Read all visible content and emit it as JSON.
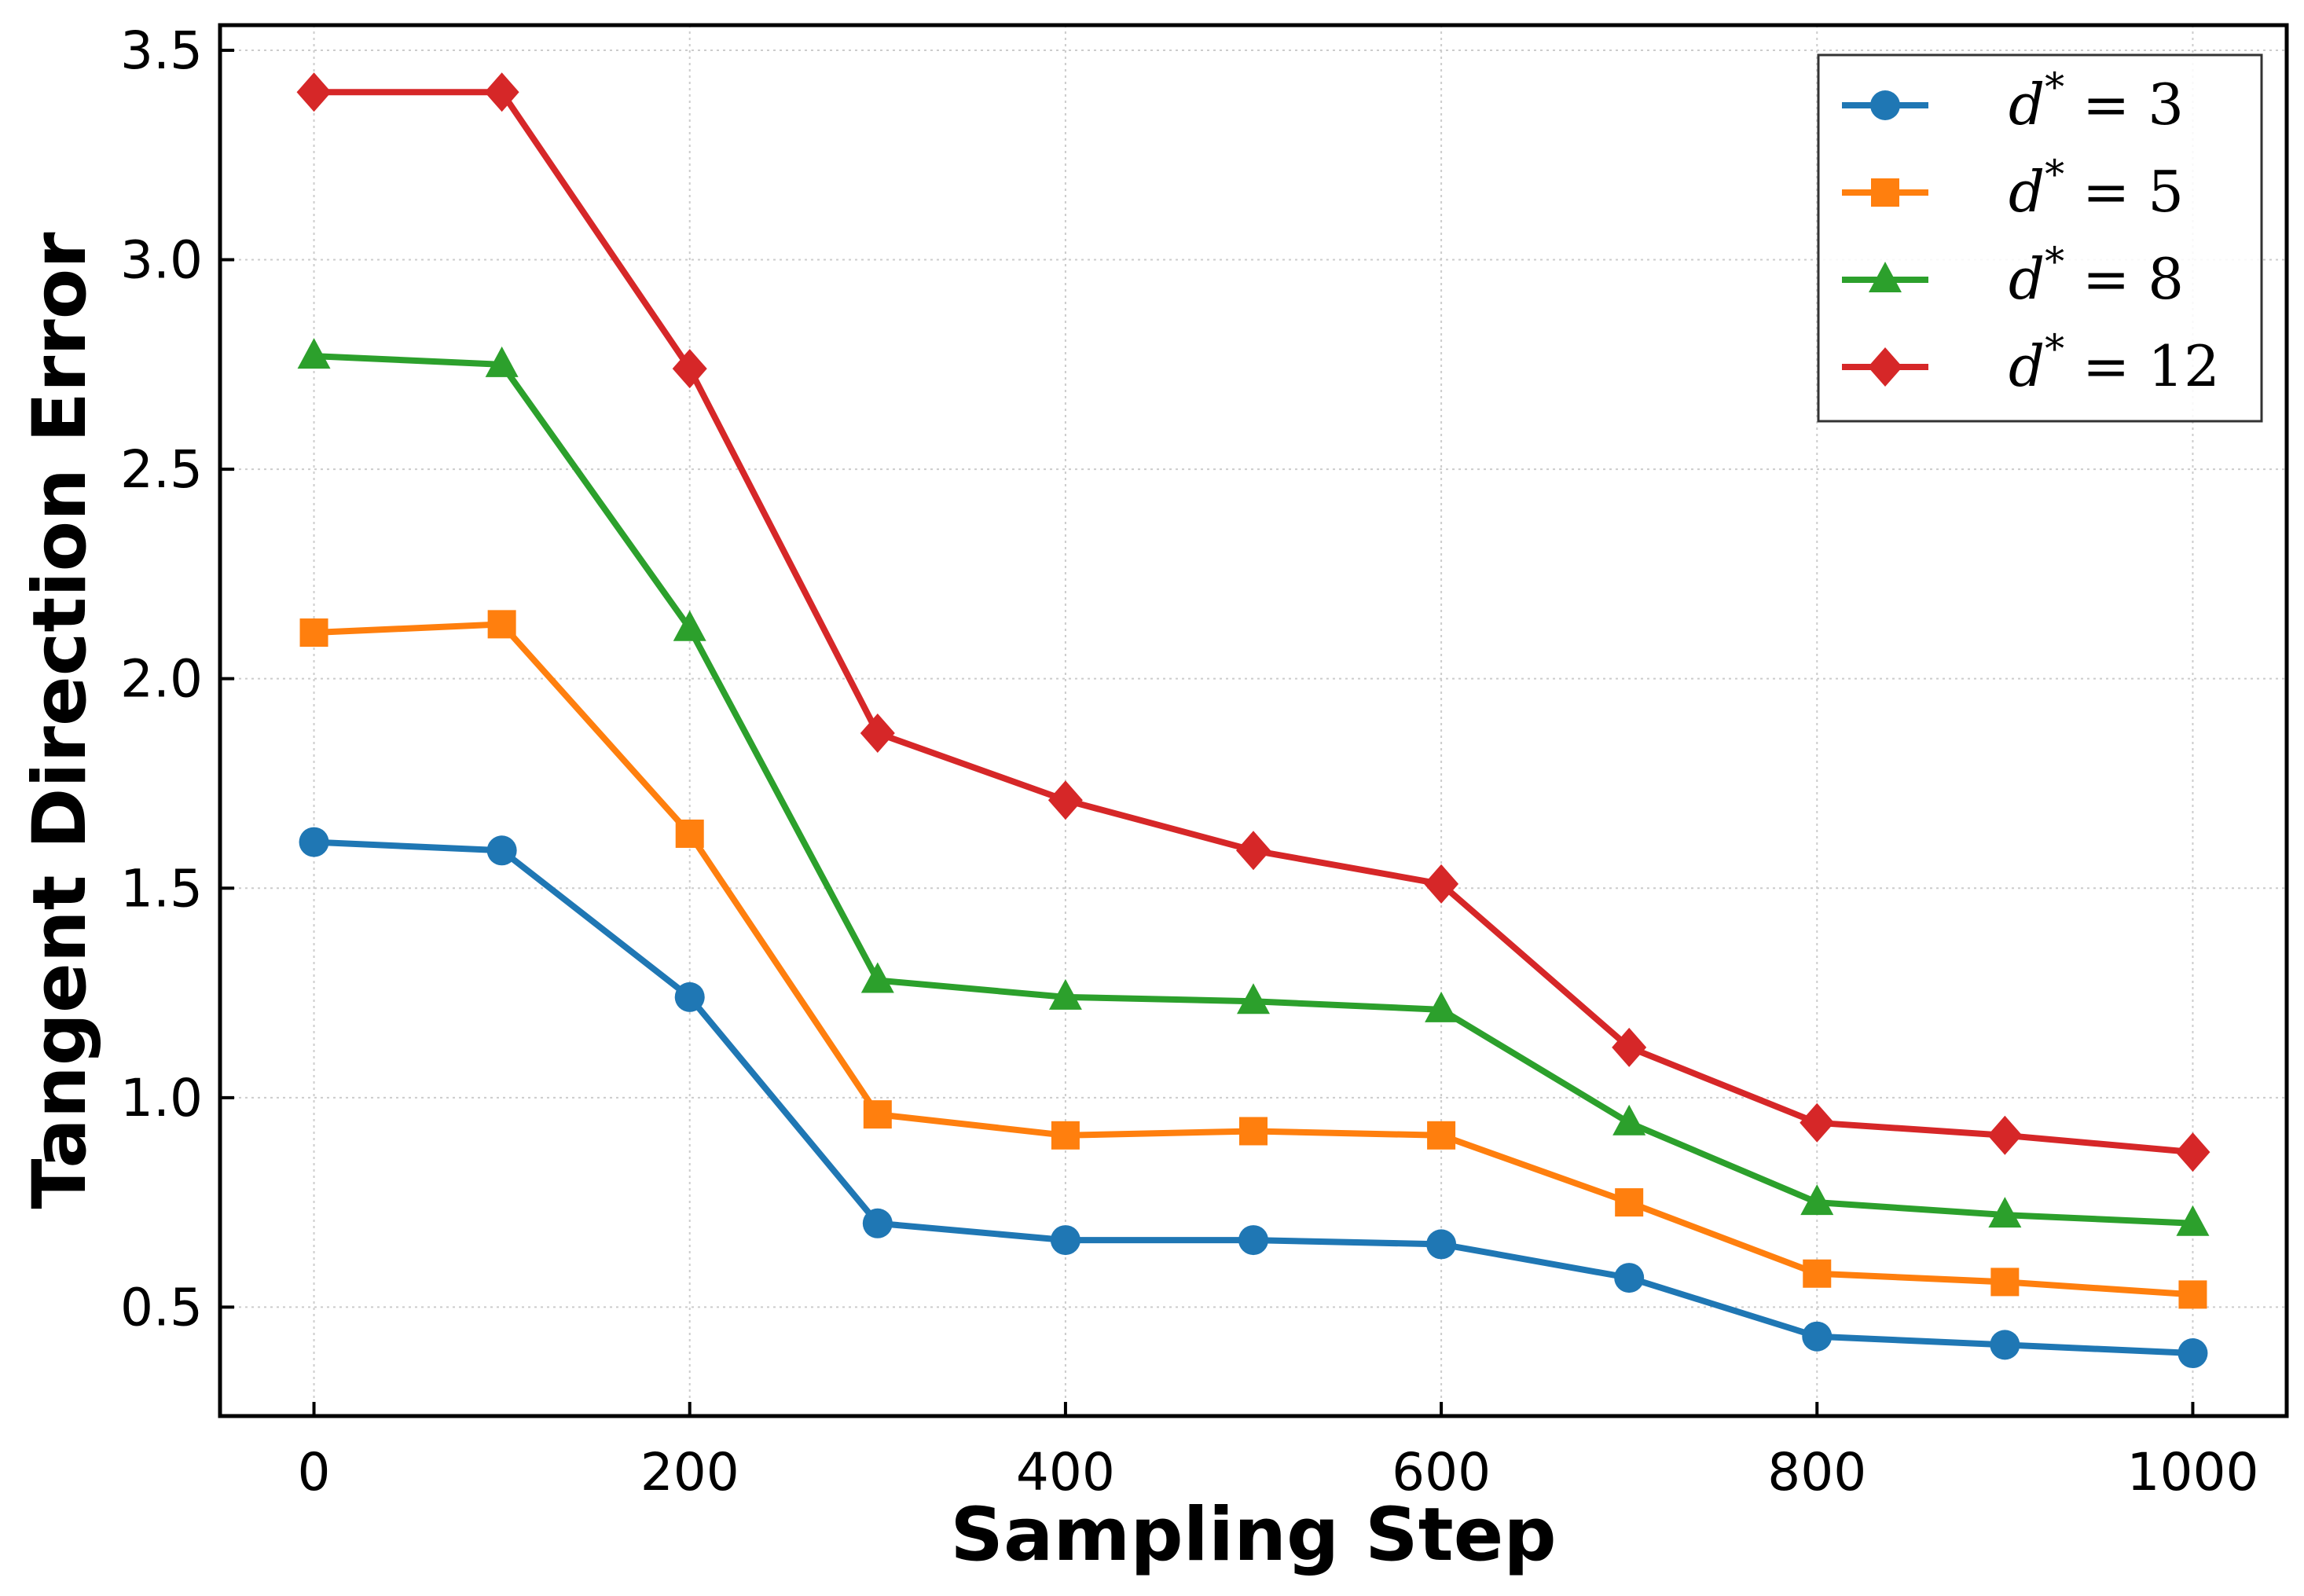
{
  "chart_data": {
    "type": "line",
    "title": "",
    "xlabel": "Sampling Step",
    "ylabel": "Tangent Direction Error",
    "x": [
      0,
      100,
      200,
      300,
      400,
      500,
      600,
      700,
      800,
      900,
      1000
    ],
    "xlim": [
      -50,
      1050
    ],
    "ylim": [
      0.24,
      3.56
    ],
    "xticks": [
      0,
      200,
      400,
      600,
      800,
      1000
    ],
    "xtick_labels": [
      "0",
      "200",
      "400",
      "600",
      "800",
      "1000"
    ],
    "yticks": [
      0.5,
      1.0,
      1.5,
      2.0,
      2.5,
      3.0,
      3.5
    ],
    "ytick_labels": [
      "0.5",
      "1.0",
      "1.5",
      "2.0",
      "2.5",
      "3.0",
      "3.5"
    ],
    "grid": true,
    "legend_position": "top-right",
    "series": [
      {
        "name": "d* = 3",
        "label_var": "d",
        "label_sup": "*",
        "label_rest": " = 3",
        "color": "#1f77b4",
        "marker": "circle",
        "values": [
          1.61,
          1.59,
          1.24,
          0.7,
          0.66,
          0.66,
          0.65,
          0.57,
          0.43,
          0.41,
          0.39
        ]
      },
      {
        "name": "d* = 5",
        "label_var": "d",
        "label_sup": "*",
        "label_rest": " = 5",
        "color": "#ff7f0e",
        "marker": "square",
        "values": [
          2.11,
          2.13,
          1.63,
          0.96,
          0.91,
          0.92,
          0.91,
          0.75,
          0.58,
          0.56,
          0.53
        ]
      },
      {
        "name": "d* = 8",
        "label_var": "d",
        "label_sup": "*",
        "label_rest": " = 8",
        "color": "#2ca02c",
        "marker": "triangle",
        "values": [
          2.77,
          2.75,
          2.12,
          1.28,
          1.24,
          1.23,
          1.21,
          0.94,
          0.75,
          0.72,
          0.7
        ]
      },
      {
        "name": "d* = 12",
        "label_var": "d",
        "label_sup": "*",
        "label_rest": " = 12",
        "color": "#d62728",
        "marker": "diamond",
        "values": [
          3.4,
          3.4,
          2.74,
          1.87,
          1.71,
          1.59,
          1.51,
          1.12,
          0.94,
          0.91,
          0.87
        ]
      }
    ]
  }
}
